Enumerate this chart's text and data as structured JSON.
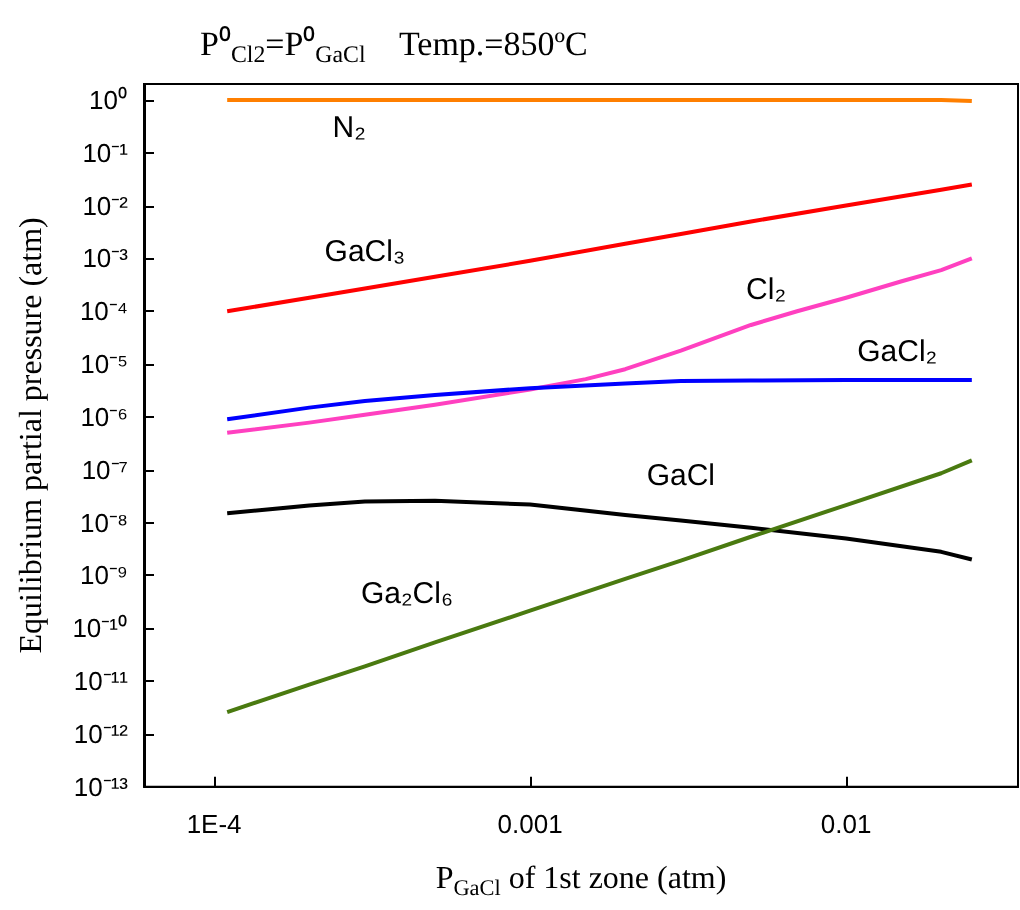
{
  "chart_data": {
    "type": "line",
    "title": "P⁰$_{Cl2}$=P⁰$_{GaCl}$    Temp.=850ºC",
    "xlabel": "P$_{GaCl}$ of 1st zone (atm)",
    "ylabel": "Equilibrium partial pressure (atm)",
    "x": [
      0.00011,
      0.0002,
      0.0003,
      0.0005,
      0.001,
      0.002,
      0.003,
      0.005,
      0.01,
      0.02,
      0.025
    ],
    "series": [
      {
        "name": "N₂",
        "color": "#ff7f00",
        "values": [
          1,
          1,
          1,
          1,
          1,
          1,
          1,
          1,
          1,
          1,
          0.95
        ]
      },
      {
        "name": "GaCl₃",
        "color": "#ff0000",
        "values": [
          0.0001,
          0.00018,
          0.00027,
          0.00045,
          0.0009,
          0.0019,
          0.0029,
          0.005,
          0.01,
          0.02,
          0.025
        ]
      },
      {
        "name": "Cl₂",
        "color": "#ff40c0",
        "x": [
          0.00011,
          0.0002,
          0.0003,
          0.0005,
          0.001,
          0.0015,
          0.002,
          0.003,
          0.004,
          0.005,
          0.007,
          0.01,
          0.015,
          0.02,
          0.025
        ],
        "values": [
          5e-07,
          7.8e-07,
          1.1e-06,
          1.7e-06,
          3.3e-06,
          5.2e-06,
          8e-06,
          1.8e-05,
          3.4e-05,
          5.5e-05,
          0.0001,
          0.00018,
          0.00037,
          0.0006,
          0.001
        ]
      },
      {
        "name": "GaCl₂",
        "color": "#0000ff",
        "values": [
          9e-07,
          1.5e-06,
          2e-06,
          2.6e-06,
          3.5e-06,
          4.3e-06,
          4.8e-06,
          4.9e-06,
          5e-06,
          5e-06,
          5e-06
        ]
      },
      {
        "name": "GaCl",
        "color": "#000000",
        "values": [
          1.5e-08,
          2.1e-08,
          2.5e-08,
          2.6e-08,
          2.2e-08,
          1.4e-08,
          1.1e-08,
          8e-09,
          5e-09,
          2.8e-09,
          2e-09
        ]
      },
      {
        "name": "Ga₂Cl₆",
        "color": "#4a7a10",
        "values": [
          2.6e-12,
          8.6e-12,
          1.9e-11,
          5.4e-11,
          2.15e-10,
          8.6e-10,
          1.9e-09,
          5.4e-09,
          2.15e-08,
          8.6e-08,
          1.5e-07
        ]
      }
    ],
    "log": "xy",
    "xlim": [
      6e-05,
      0.035
    ],
    "ylim": [
      1e-13,
      2
    ],
    "xticks": [
      {
        "value": 0.0001,
        "label": "1E-4"
      },
      0.001,
      0.01
    ],
    "yticks": [
      {
        "value": 1e-13,
        "label": "10⁻¹³"
      },
      {
        "value": 1e-12,
        "label": "10⁻¹²"
      },
      {
        "value": 1e-11,
        "label": "10⁻¹¹"
      },
      {
        "value": 1e-10,
        "label": "10⁻¹⁰"
      },
      {
        "value": 1e-09,
        "label": "10⁻⁹"
      },
      {
        "value": 1e-08,
        "label": "10⁻⁸"
      },
      {
        "value": 1e-07,
        "label": "10⁻⁷"
      },
      {
        "value": 1e-06,
        "label": "10⁻⁶"
      },
      {
        "value": 1e-05,
        "label": "10⁻⁵"
      },
      {
        "value": 0.0001,
        "label": "10⁻⁴"
      },
      {
        "value": 0.001,
        "label": "10⁻³"
      },
      {
        "value": 0.01,
        "label": "10⁻²"
      },
      {
        "value": 0.1,
        "label": "10⁻¹"
      },
      {
        "value": 1,
        "label": "10⁰"
      }
    ],
    "grid": false,
    "legend": false,
    "marker": "none",
    "line_style": "solid"
  }
}
